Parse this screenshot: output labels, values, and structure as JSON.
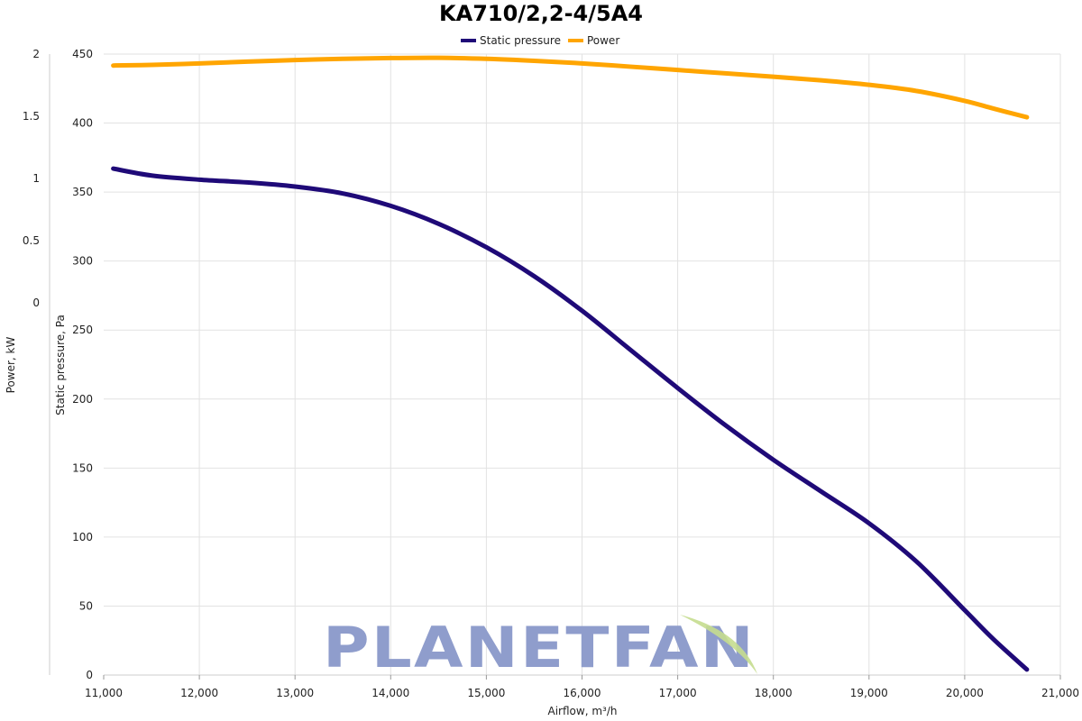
{
  "chart_data": {
    "type": "line",
    "title": "KA710/2,2-4/5A4",
    "xlabel": "Airflow, m³/h",
    "ylabel": "Static pressure, Pa",
    "y2label": "Power, kW",
    "xlim": [
      11000,
      21000
    ],
    "ylim": [
      0,
      450
    ],
    "y2lim": [
      0,
      2
    ],
    "xticks": [
      11000,
      12000,
      13000,
      14000,
      15000,
      16000,
      17000,
      18000,
      19000,
      20000,
      21000
    ],
    "xtick_labels": [
      "11,000",
      "12,000",
      "13,000",
      "14,000",
      "15,000",
      "16,000",
      "17,000",
      "18,000",
      "19,000",
      "20,000",
      "21,000"
    ],
    "yticks": [
      0,
      50,
      100,
      150,
      200,
      250,
      300,
      350,
      400,
      450
    ],
    "ytick_labels": [
      "0",
      "50",
      "100",
      "150",
      "200",
      "250",
      "300",
      "350",
      "400",
      "450"
    ],
    "y2ticks": [
      0,
      0.5,
      1,
      1.5,
      2
    ],
    "y2tick_labels": [
      "0",
      "0.5",
      "1",
      "1.5",
      "2"
    ],
    "grid": true,
    "legend_position": "top-center",
    "series": [
      {
        "name": "Static pressure",
        "axis": "left",
        "color": "#1f0a78",
        "x": [
          11100,
          11500,
          12000,
          12500,
          13000,
          13500,
          14000,
          14500,
          15000,
          15500,
          16000,
          16500,
          17000,
          17500,
          18000,
          18500,
          19000,
          19500,
          20000,
          20300,
          20650
        ],
        "y": [
          367,
          362,
          359,
          357,
          354,
          349,
          340,
          327,
          310,
          289,
          264,
          236,
          208,
          181,
          156,
          133,
          110,
          82,
          47,
          26,
          4
        ]
      },
      {
        "name": "Power",
        "axis": "right",
        "color": "#ffa500",
        "x": [
          11100,
          11500,
          12000,
          12500,
          13000,
          13500,
          14000,
          14500,
          15000,
          15500,
          16000,
          16500,
          17000,
          17500,
          18000,
          18500,
          19000,
          19500,
          20000,
          20300,
          20650
        ],
        "y": [
          1.908,
          1.913,
          1.925,
          1.939,
          1.952,
          1.962,
          1.968,
          1.97,
          1.962,
          1.946,
          1.925,
          1.899,
          1.872,
          1.845,
          1.818,
          1.789,
          1.753,
          1.703,
          1.624,
          1.562,
          1.492
        ]
      }
    ]
  },
  "branding": {
    "logo_text": "PLANETFAN",
    "logo_text_color": "#8f9dcc",
    "logo_leaf_color": "#c5dd8f"
  }
}
